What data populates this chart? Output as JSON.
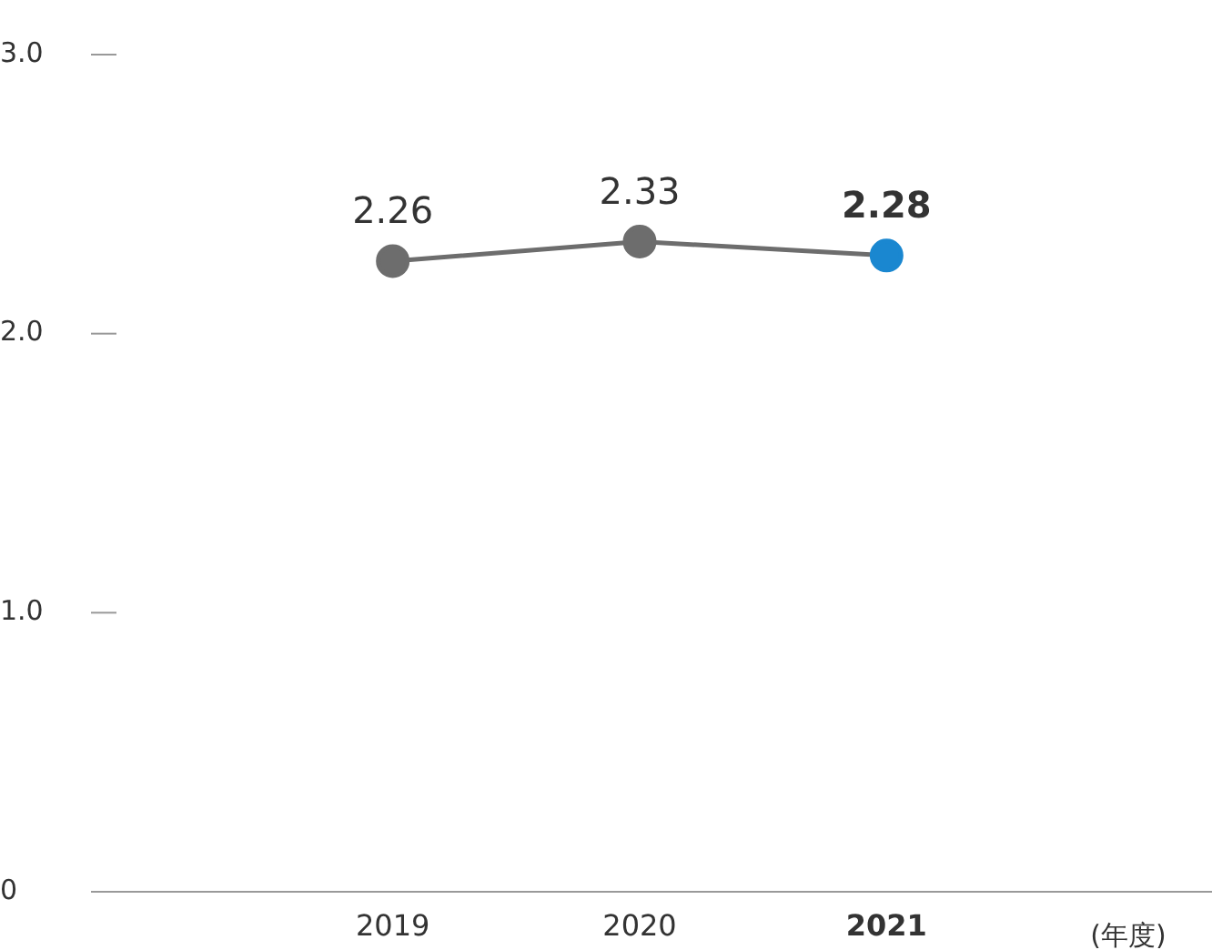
{
  "chart_data": {
    "type": "line",
    "categories": [
      "2019",
      "2020",
      "2021"
    ],
    "series": [
      {
        "color": "#6d6d6d",
        "colors": [
          "#6d6d6d",
          "#6d6d6d",
          "#1a87d0"
        ],
        "values": [
          2.26,
          2.33,
          2.28
        ]
      }
    ],
    "xlabel": "(年度)",
    "ylim": [
      0,
      3.0
    ],
    "yticks": [
      {
        "value": 0,
        "label": "0"
      },
      {
        "value": 1,
        "label": "1.0"
      },
      {
        "value": 2,
        "label": "2.0"
      },
      {
        "value": 3,
        "label": "3.0"
      }
    ],
    "data_labels": true,
    "grid": false,
    "legend": false,
    "marker": "circle",
    "line_style": "solid"
  }
}
